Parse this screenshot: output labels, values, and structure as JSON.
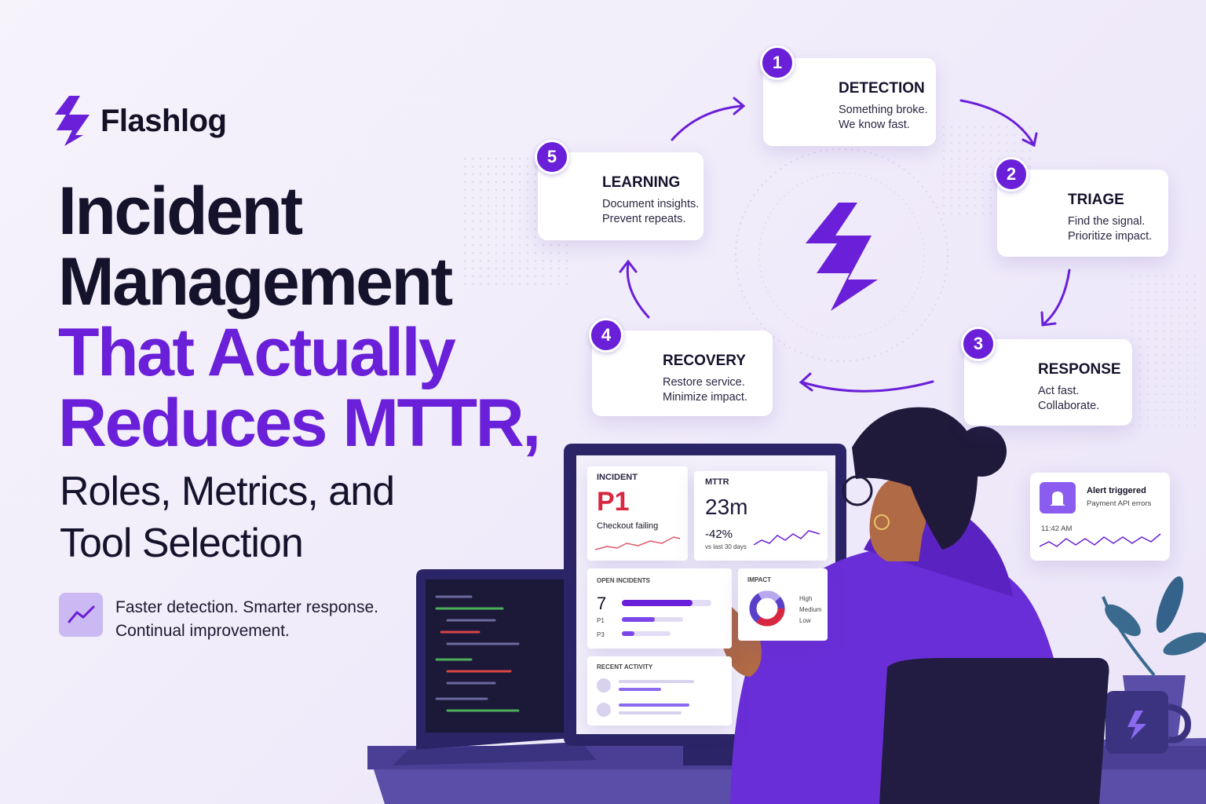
{
  "brand": {
    "name": "Flashlog"
  },
  "headline": {
    "dark_lines": [
      "Incident",
      "Management"
    ],
    "accent_lines": [
      "That Actually",
      "Reduces MTTR,"
    ],
    "sub_lines": [
      "Roles, Metrics, and",
      "Tool Selection"
    ]
  },
  "tagline": {
    "lines": [
      "Faster detection. Smarter response.",
      "Continual improvement."
    ]
  },
  "steps": [
    {
      "number": "1",
      "title": "DETECTION",
      "lines": [
        "Something broke.",
        "We know fast."
      ]
    },
    {
      "number": "2",
      "title": "TRIAGE",
      "lines": [
        "Find the signal.",
        "Prioritize impact."
      ]
    },
    {
      "number": "3",
      "title": "RESPONSE",
      "lines": [
        "Act fast.",
        "Collaborate."
      ]
    },
    {
      "number": "4",
      "title": "RECOVERY",
      "lines": [
        "Restore service.",
        "Minimize impact."
      ]
    },
    {
      "number": "5",
      "title": "LEARNING",
      "lines": [
        "Document insights.",
        "Prevent repeats."
      ]
    }
  ],
  "dashboard": {
    "incident": {
      "label": "INCIDENT",
      "severity": "P1",
      "description": "Checkout failing"
    },
    "mttr": {
      "label": "MTTR",
      "value": "23m",
      "change": "-42%",
      "note": "vs last 30 days"
    },
    "open_incidents": {
      "label": "OPEN INCIDENTS",
      "count": "7",
      "rows": [
        "P1",
        "P3"
      ]
    },
    "impact": {
      "label": "IMPACT",
      "legend": [
        "High",
        "Medium",
        "Low"
      ]
    },
    "recent_activity": {
      "label": "RECENT ACTIVITY"
    }
  },
  "alert": {
    "title": "Alert triggered",
    "subtitle": "Payment API errors",
    "time": "11:42 AM"
  }
}
